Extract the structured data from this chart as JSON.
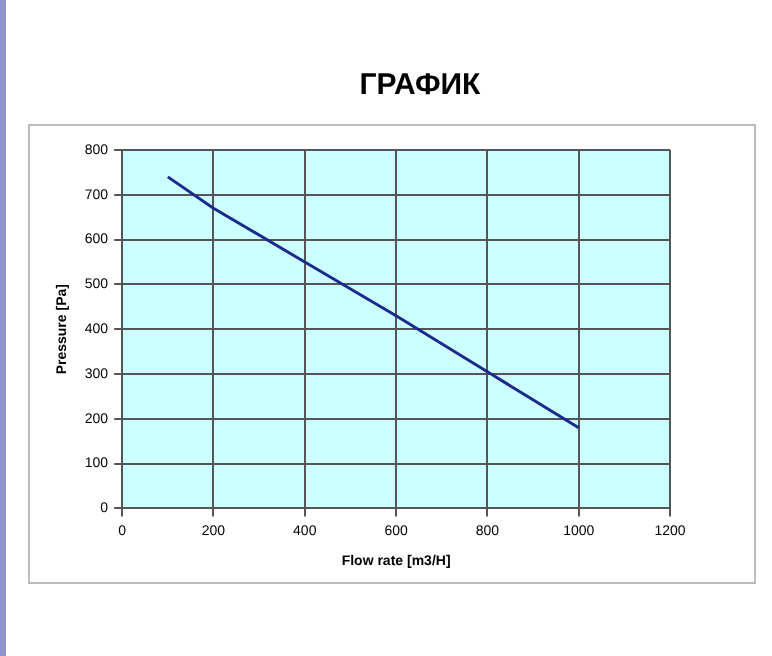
{
  "chart_data": {
    "type": "line",
    "title": "ГРАФИК",
    "xlabel": "Flow rate [m3/H]",
    "ylabel": "Pressure [Pa]",
    "x": [
      100,
      200,
      400,
      600,
      800,
      1000
    ],
    "series": [
      {
        "color": "#1c2a8c",
        "values": [
          740,
          670,
          550,
          430,
          305,
          180
        ]
      }
    ],
    "xlim": [
      0,
      1200
    ],
    "xticks": [
      0,
      200,
      400,
      600,
      800,
      1000,
      1200
    ],
    "ylim": [
      0,
      800
    ],
    "yticks": [
      0,
      100,
      200,
      300,
      400,
      500,
      600,
      700,
      800
    ],
    "grid": true,
    "legend": false,
    "marker": "none",
    "line_style": "solid"
  }
}
